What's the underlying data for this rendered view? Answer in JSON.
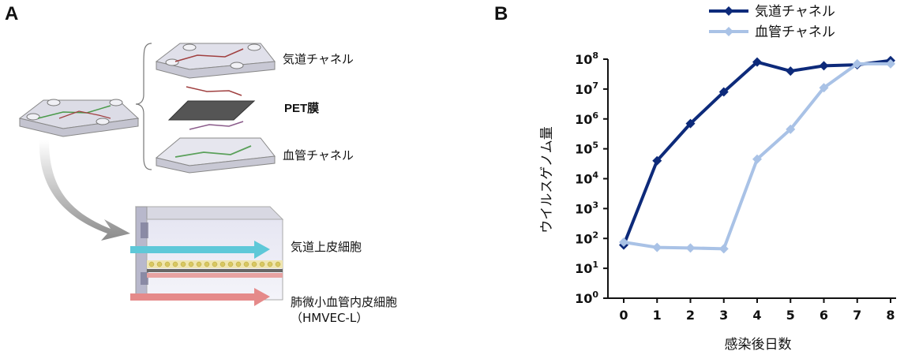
{
  "panel_a": {
    "letter": "A",
    "labels": {
      "air_channel": "気道チャネル",
      "membrane": "PET膜",
      "blood_channel": "血管チャネル",
      "epithelial": "気道上皮細胞",
      "endothelial": "肺微小血管内皮細胞",
      "endothelial_sub": "（HMVEC-L）"
    },
    "colors": {
      "air_arrow": "#5ec8d8",
      "blood_arrow": "#e58a8a"
    }
  },
  "panel_b": {
    "letter": "B"
  },
  "chart_data": {
    "type": "line",
    "title": "",
    "xlabel": "感染後日数",
    "ylabel": "ウイルスゲノム量",
    "x": [
      0,
      1,
      2,
      3,
      4,
      5,
      6,
      7,
      8
    ],
    "x_tick_labels": [
      "0",
      "1",
      "2",
      "3",
      "4",
      "5",
      "6",
      "7",
      "8"
    ],
    "y_scale": "log",
    "ylim": [
      1,
      100000000
    ],
    "y_tick_labels": [
      {
        "base": "10",
        "exp": "0"
      },
      {
        "base": "10",
        "exp": "1"
      },
      {
        "base": "10",
        "exp": "2"
      },
      {
        "base": "10",
        "exp": "3"
      },
      {
        "base": "10",
        "exp": "4"
      },
      {
        "base": "10",
        "exp": "5"
      },
      {
        "base": "10",
        "exp": "6"
      },
      {
        "base": "10",
        "exp": "7"
      },
      {
        "base": "10",
        "exp": "8"
      }
    ],
    "grid": false,
    "legend_position": "top-right",
    "series": [
      {
        "name": "気道チャネル",
        "color": "#0d2a7a",
        "values": [
          60,
          40000,
          700000,
          8000000,
          80000000,
          40000000,
          60000000,
          65000000,
          90000000
        ]
      },
      {
        "name": "血管チャネル",
        "color": "#a9c2e6",
        "values": [
          75,
          50,
          48,
          45,
          45000,
          450000,
          11000000,
          70000000,
          70000000
        ]
      }
    ]
  }
}
